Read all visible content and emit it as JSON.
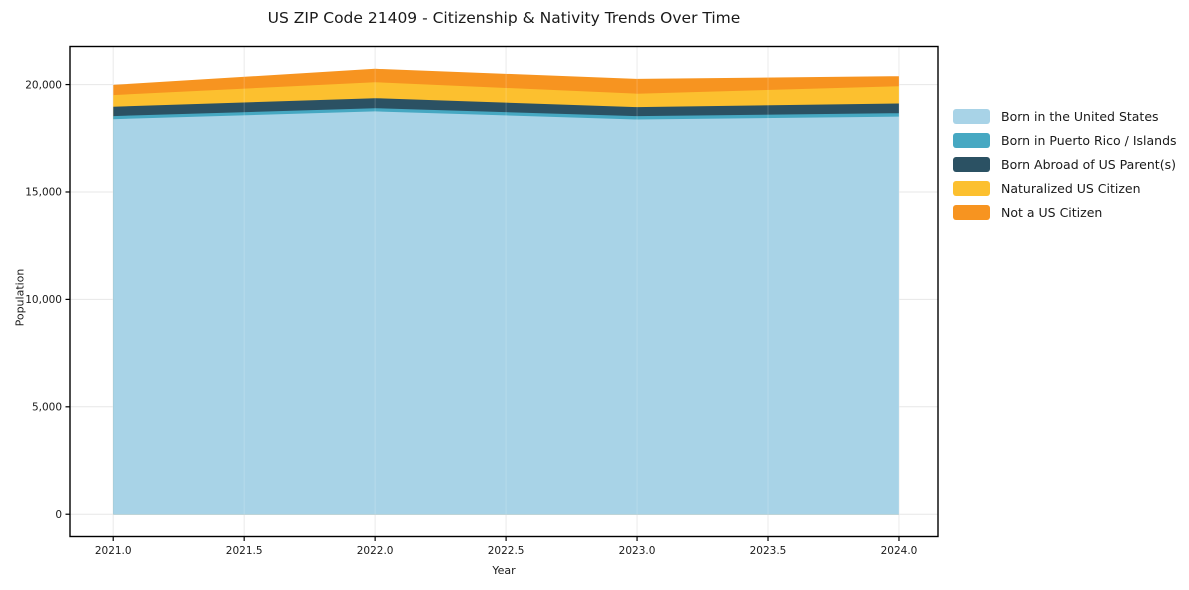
{
  "chart_data": {
    "type": "area",
    "stacked": true,
    "title": "US ZIP Code 21409 - Citizenship & Nativity Trends Over Time",
    "xlabel": "Year",
    "ylabel": "Population",
    "x": [
      2021,
      2022,
      2023,
      2024
    ],
    "series": [
      {
        "name": "Born in the United States",
        "color": "#A8D3E7",
        "values": [
          18390,
          18750,
          18375,
          18510
        ]
      },
      {
        "name": "Born in Puerto Rico / Islands",
        "color": "#46A8C2",
        "values": [
          140,
          150,
          155,
          155
        ]
      },
      {
        "name": "Born Abroad of US Parent(s)",
        "color": "#2B5163",
        "values": [
          440,
          465,
          420,
          455
        ]
      },
      {
        "name": "Naturalized US Citizen",
        "color": "#FCC02F",
        "values": [
          540,
          745,
          625,
          805
        ]
      },
      {
        "name": "Not a US Citizen",
        "color": "#F79420",
        "values": [
          475,
          625,
          690,
          465
        ]
      }
    ],
    "xticks": {
      "values": [
        2021.0,
        2021.5,
        2022.0,
        2022.5,
        2023.0,
        2023.5,
        2024.0
      ],
      "labels": [
        "2021.0",
        "2021.5",
        "2022.0",
        "2022.5",
        "2023.0",
        "2023.5",
        "2024.0"
      ]
    },
    "yticks": {
      "values": [
        0,
        5000,
        10000,
        15000,
        20000
      ],
      "labels": [
        "0",
        "5,000",
        "10,000",
        "15,000",
        "20,000"
      ]
    },
    "xlim": [
      2020.835,
      2024.149
    ],
    "ylim": [
      -1037,
      21772
    ],
    "grid": true,
    "legend_position": "right",
    "colors": {
      "grid": "#e7e7e7",
      "spine": "#000000",
      "tick_label": "#1a1a1a",
      "background": "#ffffff"
    }
  }
}
